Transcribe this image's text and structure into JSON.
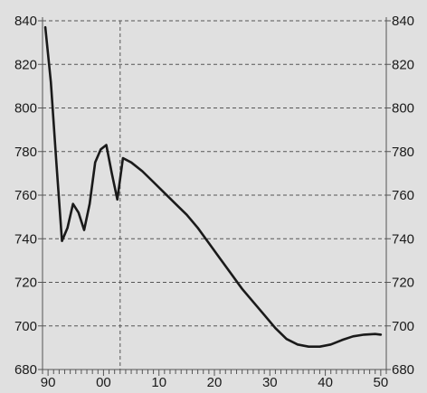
{
  "chart_data": {
    "type": "line",
    "title": "",
    "xlabel": "",
    "ylabel": "",
    "xlim": [
      1989,
      2051
    ],
    "ylim": [
      680,
      840
    ],
    "x_ticks": [
      1990,
      2000,
      2010,
      2020,
      2030,
      2040,
      2050
    ],
    "x_tick_labels": [
      "90",
      "00",
      "10",
      "20",
      "30",
      "40",
      "50"
    ],
    "y_ticks": [
      680,
      700,
      720,
      740,
      760,
      780,
      800,
      820,
      840
    ],
    "y_tick_labels": [
      "680",
      "700",
      "720",
      "740",
      "760",
      "780",
      "800",
      "820",
      "840"
    ],
    "y_axis_labels_on": "left and right",
    "grid": true,
    "grid_style": "dashed",
    "vertical_marker_x": 2003,
    "line_color": "#1a1a1a",
    "background_color": "#e0e0e0",
    "series": [
      {
        "x": [
          1989.5,
          1990.5,
          1991.5,
          1992.5,
          1993.5,
          1994.5,
          1995.5,
          1996.5,
          1997.5,
          1998.5,
          1999.5,
          2000.5,
          2001.5,
          2002.5,
          2003.5,
          2005,
          2007,
          2009,
          2011,
          2013,
          2015,
          2017,
          2019,
          2021,
          2023,
          2025,
          2027,
          2029,
          2031,
          2033,
          2035,
          2037,
          2039,
          2041,
          2043,
          2045,
          2047,
          2049,
          2050
        ],
        "values": [
          837,
          812,
          775,
          739,
          745,
          756,
          752,
          744,
          756,
          775,
          781,
          783,
          770,
          758,
          777,
          775,
          771,
          766,
          761,
          756,
          751,
          745,
          738,
          731,
          724,
          717,
          711,
          705,
          699,
          694,
          691.5,
          690.5,
          690.5,
          691.5,
          693.5,
          695.2,
          696,
          696.3,
          696
        ]
      }
    ]
  }
}
